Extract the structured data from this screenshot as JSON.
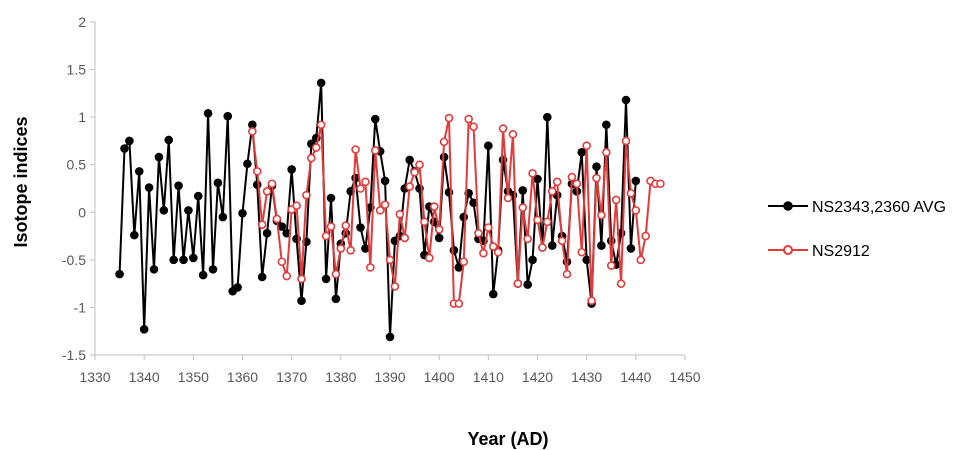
{
  "chart_data": {
    "type": "line",
    "title": "",
    "xlabel": "Year (AD)",
    "ylabel": "Isotope indices",
    "xlim": [
      1330,
      1450
    ],
    "ylim": [
      -1.5,
      2
    ],
    "xticks": [
      1330,
      1340,
      1350,
      1360,
      1370,
      1380,
      1390,
      1400,
      1410,
      1420,
      1430,
      1440,
      1450
    ],
    "yticks": [
      -1.5,
      -1,
      -0.5,
      0,
      0.5,
      1,
      1.5,
      2
    ],
    "xtick_labels": [
      "1330",
      "1340",
      "1350",
      "1360",
      "1370",
      "1380",
      "1390",
      "1400",
      "1410",
      "1420",
      "1430",
      "1440",
      "1450"
    ],
    "ytick_labels": [
      "-1.5",
      "-1",
      "-0.5",
      "0",
      "0.5",
      "1",
      "1.5",
      "2"
    ],
    "grid": false,
    "legend_position": "right",
    "series": [
      {
        "name": "NS2343,2360 AVG",
        "color": "#000000",
        "marker": "filled-circle",
        "x": [
          1335,
          1336,
          1337,
          1338,
          1339,
          1340,
          1341,
          1342,
          1343,
          1344,
          1345,
          1346,
          1347,
          1348,
          1349,
          1350,
          1351,
          1352,
          1353,
          1354,
          1355,
          1356,
          1357,
          1358,
          1359,
          1360,
          1361,
          1362,
          1363,
          1364,
          1365,
          1366,
          1367,
          1368,
          1369,
          1370,
          1371,
          1372,
          1373,
          1374,
          1375,
          1376,
          1377,
          1378,
          1379,
          1380,
          1381,
          1382,
          1383,
          1384,
          1385,
          1386,
          1387,
          1388,
          1389,
          1390,
          1391,
          1392,
          1393,
          1394,
          1395,
          1396,
          1397,
          1398,
          1399,
          1400,
          1401,
          1402,
          1403,
          1404,
          1405,
          1406,
          1407,
          1408,
          1409,
          1410,
          1411,
          1412,
          1413,
          1414,
          1415,
          1416,
          1417,
          1418,
          1419,
          1420,
          1421,
          1422,
          1423,
          1424,
          1425,
          1426,
          1427,
          1428,
          1429,
          1430,
          1431,
          1432,
          1433,
          1434,
          1435,
          1436,
          1437,
          1438,
          1439,
          1440
        ],
        "y": [
          -0.65,
          0.67,
          0.75,
          -0.24,
          0.43,
          -1.23,
          0.26,
          -0.6,
          0.58,
          0.02,
          0.76,
          -0.5,
          0.28,
          -0.5,
          0.02,
          -0.48,
          0.17,
          -0.66,
          1.04,
          -0.6,
          0.31,
          -0.05,
          1.01,
          -0.83,
          -0.79,
          -0.01,
          0.51,
          0.92,
          0.29,
          -0.68,
          -0.22,
          0.28,
          -0.09,
          -0.15,
          -0.22,
          0.45,
          -0.28,
          -0.93,
          -0.31,
          0.72,
          0.78,
          1.36,
          -0.7,
          0.15,
          -0.91,
          -0.33,
          -0.22,
          0.22,
          0.36,
          -0.16,
          -0.38,
          0.05,
          0.98,
          0.64,
          0.33,
          -1.31,
          -0.3,
          -0.25,
          0.25,
          0.55,
          0.43,
          0.25,
          -0.45,
          0.06,
          -0.1,
          -0.27,
          0.58,
          0.21,
          -0.4,
          -0.58,
          -0.05,
          0.2,
          0.1,
          -0.28,
          -0.3,
          0.7,
          -0.86,
          -0.4,
          0.55,
          0.22,
          0.18,
          -0.75,
          0.23,
          -0.76,
          -0.5,
          0.35,
          -0.37,
          1.0,
          -0.35,
          0.18,
          -0.25,
          -0.52,
          0.3,
          0.22,
          0.63,
          -0.5,
          -0.96,
          0.48,
          -0.35,
          0.92,
          -0.3,
          -0.55,
          -0.22,
          1.18,
          -0.38,
          0.33
        ]
      },
      {
        "name": "NS2912",
        "color": "#e03c3c",
        "marker": "open-circle",
        "x": [
          1362,
          1363,
          1364,
          1365,
          1366,
          1367,
          1368,
          1369,
          1370,
          1371,
          1372,
          1373,
          1374,
          1375,
          1376,
          1377,
          1378,
          1379,
          1380,
          1381,
          1382,
          1383,
          1384,
          1385,
          1386,
          1387,
          1388,
          1389,
          1390,
          1391,
          1392,
          1393,
          1394,
          1395,
          1396,
          1397,
          1398,
          1399,
          1400,
          1401,
          1402,
          1403,
          1404,
          1405,
          1406,
          1407,
          1408,
          1409,
          1410,
          1411,
          1412,
          1413,
          1414,
          1415,
          1416,
          1417,
          1418,
          1419,
          1420,
          1421,
          1422,
          1423,
          1424,
          1425,
          1426,
          1427,
          1428,
          1429,
          1430,
          1431,
          1432,
          1433,
          1434,
          1435,
          1436,
          1437,
          1438,
          1439,
          1440,
          1441,
          1442,
          1443,
          1444,
          1445
        ],
        "y": [
          0.85,
          0.43,
          -0.13,
          0.22,
          0.3,
          -0.07,
          -0.52,
          -0.67,
          0.03,
          0.07,
          -0.7,
          0.18,
          0.57,
          0.68,
          0.92,
          -0.25,
          -0.15,
          -0.65,
          -0.38,
          -0.14,
          -0.4,
          0.66,
          0.25,
          0.32,
          -0.58,
          0.65,
          0.02,
          0.08,
          -0.5,
          -0.78,
          -0.02,
          -0.27,
          0.27,
          0.42,
          0.5,
          -0.1,
          -0.48,
          0.06,
          -0.18,
          0.74,
          0.99,
          -0.96,
          -0.96,
          -0.52,
          0.98,
          0.9,
          -0.22,
          -0.43,
          -0.16,
          -0.36,
          -0.42,
          0.88,
          0.15,
          0.82,
          -0.75,
          0.05,
          -0.28,
          0.41,
          -0.08,
          -0.37,
          -0.1,
          0.22,
          0.32,
          -0.3,
          -0.65,
          0.37,
          0.3,
          -0.42,
          0.7,
          -0.93,
          0.36,
          -0.03,
          0.63,
          -0.56,
          0.13,
          -0.75,
          0.75,
          0.2,
          0.02,
          -0.5,
          -0.25,
          0.33,
          0.3,
          0.3
        ]
      }
    ]
  }
}
